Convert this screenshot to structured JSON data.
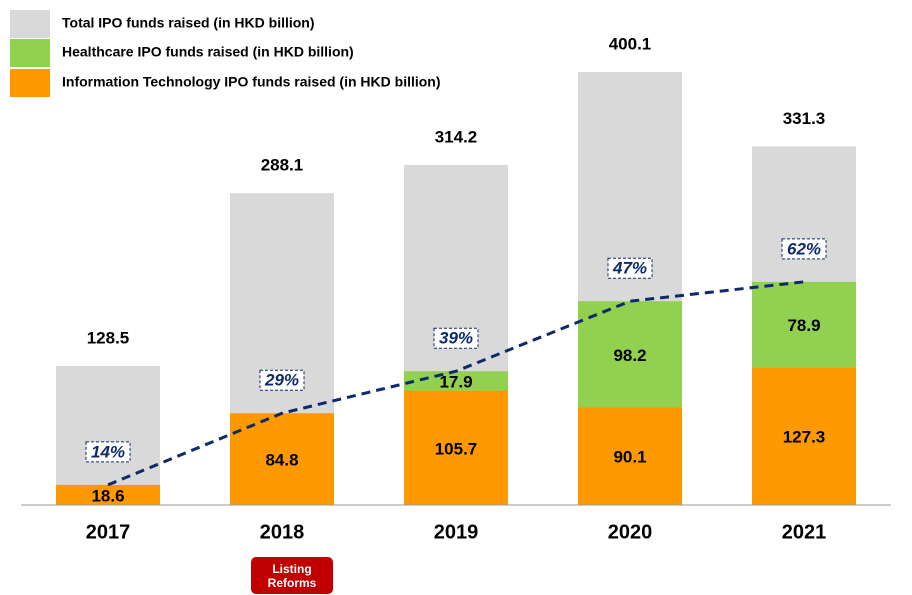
{
  "chart_data": {
    "type": "bar",
    "categories": [
      "2017",
      "2018",
      "2019",
      "2020",
      "2021"
    ],
    "series": [
      {
        "name": "Total IPO funds raised (in HKD billion)",
        "color": "#d9d9d9",
        "values": [
          128.5,
          288.1,
          314.2,
          400.1,
          331.3
        ]
      },
      {
        "name": "Healthcare IPO funds raised (in HKD billion)",
        "color": "#92d050",
        "values": [
          null,
          null,
          17.9,
          98.2,
          78.9
        ]
      },
      {
        "name": "Information Technology IPO funds raised (in HKD billion)",
        "color": "#ff9900",
        "values": [
          18.6,
          84.8,
          105.7,
          90.1,
          127.3
        ]
      }
    ],
    "share": {
      "color": "#0d2a6b",
      "values": [
        14,
        29,
        39,
        47,
        62
      ],
      "value_labels": [
        "14%",
        "29%",
        "39%",
        "47%",
        "62%"
      ]
    },
    "ylim": [
      0,
      400
    ],
    "annotation": "Listing Reforms"
  }
}
